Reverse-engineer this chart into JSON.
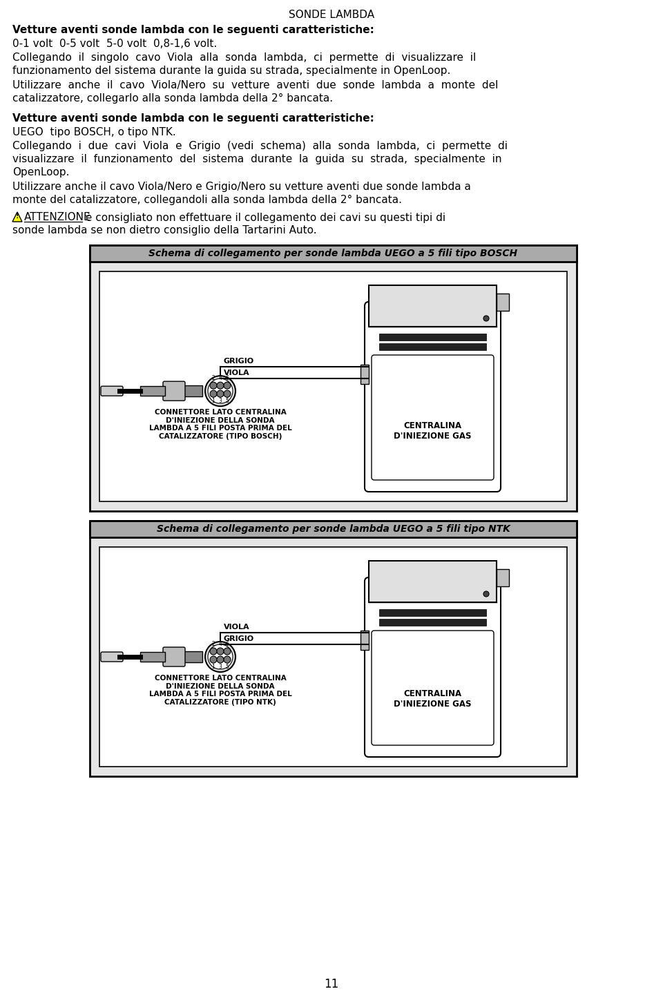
{
  "title": "SONDE LAMBDA",
  "page_number": "11",
  "background_color": "#ffffff",
  "text_color": "#000000",
  "p0_bold": "Vetture aventi sonde lambda con le seguenti caratteristiche:",
  "p1": "0-1 volt  0-5 volt  5-0 volt  0,8-1,6 volt.",
  "p2a": "Collegando  il  singolo  cavo  Viola  alla  sonda  lambda,  ci  permette  di  visualizzare  il",
  "p2b": "funzionamento del sistema durante la guida su strada, specialmente in OpenLoop.",
  "p3a": "Utilizzare  anche  il  cavo  Viola/Nero  su  vetture  aventi  due  sonde  lambda  a  monte  del",
  "p3b": "catalizzatore, collegarlo alla sonda lambda della 2° bancata.",
  "p4_bold": "Vetture aventi sonde lambda con le seguenti caratteristiche:",
  "p5": "UEGO  tipo BOSCH, o tipo NTK.",
  "p6a": "Collegando  i  due  cavi  Viola  e  Grigio  (vedi  schema)  alla  sonda  lambda,  ci  permette  di",
  "p6b": "visualizzare  il  funzionamento  del  sistema  durante  la  guida  su  strada,  specialmente  in",
  "p6c": "OpenLoop.",
  "p7a": "Utilizzare anche il cavo Viola/Nero e Grigio/Nero su vetture aventi due sonde lambda a",
  "p7b": "monte del catalizzatore, collegandoli alla sonda lambda della 2° bancata.",
  "p8_attenzione": "ATTENZIONE",
  "p8_rest": " è consigliato non effettuare il collegamento dei cavi su questi tipi di",
  "p8b": "sonde lambda se non dietro consiglio della Tartarini Auto.",
  "diagram1_title": "Schema di collegamento per sonde lambda UEGO a 5 fili tipo BOSCH",
  "diagram2_title": "Schema di collegamento per sonde lambda UEGO a 5 fili tipo NTK",
  "grigio_label": "GRIGIO",
  "viola_label": "VIOLA",
  "conn_label_bosch": "CONNETTORE LATO CENTRALINA\nD'INIEZIONE DELLA SONDA\nLAMBDA A 5 FILI POSTA PRIMA DEL\nCATALIZZATORE (TIPO BOSCH)",
  "conn_label_ntk": "CONNETTORE LATO CENTRALINA\nD'INIEZIONE DELLA SONDA\nLAMBDA A 5 FILI POSTA PRIMA DEL\nCATALIZZATORE (TIPO NTK)",
  "centralina_label": "CENTRALINA\nD'INIEZIONE GAS"
}
